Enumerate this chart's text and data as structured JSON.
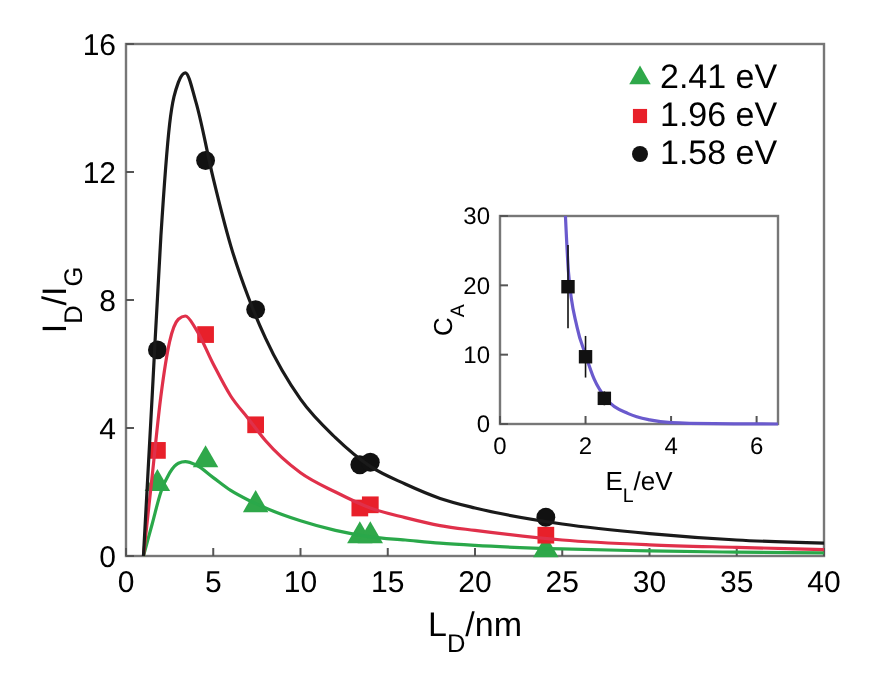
{
  "chart_data": [
    {
      "type": "scatter",
      "xlabel": "L$_{D}$/nm",
      "ylabel": "I$_{D}$/I$_{G}$",
      "xlim": [
        0,
        40
      ],
      "ylim": [
        0,
        16
      ],
      "xticks": [
        0,
        5,
        10,
        15,
        20,
        25,
        30,
        35,
        40
      ],
      "yticks": [
        0,
        4,
        8,
        12,
        16
      ],
      "legend": "top right",
      "series": [
        {
          "name": "2.41 eV",
          "color": "#2fa84a",
          "marker": "triangle",
          "x": [
            1.8,
            4.56,
            7.43,
            13.4,
            14,
            24.06
          ],
          "values": [
            2.26,
            3.0,
            1.6,
            0.63,
            0.63,
            0.19
          ]
        },
        {
          "name": "1.96 eV",
          "color": "#e8202a",
          "marker": "square",
          "x": [
            1.8,
            4.56,
            7.43,
            13.4,
            14,
            24.06
          ],
          "values": [
            3.3,
            6.92,
            4.1,
            1.5,
            1.6,
            0.65
          ]
        },
        {
          "name": "1.58 eV",
          "color": "#111111",
          "marker": "circle",
          "x": [
            1.8,
            4.56,
            7.43,
            13.4,
            14,
            24.06
          ],
          "values": [
            6.44,
            12.36,
            7.7,
            2.85,
            2.93,
            1.21
          ]
        },
        {
          "type": "line",
          "color": "#2aa84a",
          "x": [
            1,
            1.5,
            2,
            2.5,
            3,
            3.4,
            4,
            5,
            6,
            7,
            8,
            10,
            12,
            14,
            16,
            18,
            20,
            25,
            30,
            35,
            40
          ],
          "values": [
            0,
            1.0,
            2.0,
            2.6,
            2.9,
            2.95,
            2.85,
            2.45,
            2.05,
            1.75,
            1.5,
            1.1,
            0.8,
            0.6,
            0.5,
            0.4,
            0.33,
            0.22,
            0.16,
            0.12,
            0.1
          ]
        },
        {
          "type": "line",
          "color": "#e0304a",
          "x": [
            1,
            1.5,
            2,
            2.5,
            3,
            3.4,
            4,
            5,
            6,
            7,
            8,
            10,
            12,
            14,
            16,
            18,
            20,
            25,
            30,
            35,
            40
          ],
          "values": [
            0,
            2.5,
            5,
            6.7,
            7.4,
            7.5,
            7.1,
            6.0,
            5.0,
            4.3,
            3.6,
            2.6,
            2.0,
            1.5,
            1.2,
            0.95,
            0.8,
            0.5,
            0.35,
            0.27,
            0.2
          ]
        },
        {
          "type": "line",
          "color": "#1a1a1a",
          "x": [
            1,
            1.5,
            2,
            2.5,
            3,
            3.4,
            4,
            5,
            6,
            7,
            8,
            10,
            12,
            14,
            16,
            18,
            20,
            25,
            30,
            35,
            40
          ],
          "values": [
            0,
            5,
            10,
            13.5,
            14.8,
            15.1,
            14.2,
            11.8,
            9.7,
            8.1,
            6.8,
            4.9,
            3.7,
            2.8,
            2.25,
            1.8,
            1.5,
            1.0,
            0.7,
            0.5,
            0.4
          ]
        }
      ]
    },
    {
      "type": "scatter",
      "xlabel": "E$_{L}$/eV",
      "ylabel": "C$_{A}$",
      "xlim": [
        0,
        6.5
      ],
      "ylim": [
        0,
        30
      ],
      "xticks": [
        0,
        2,
        4,
        6
      ],
      "yticks": [
        0,
        10,
        20,
        30
      ],
      "series": [
        {
          "color": "#6a5acd",
          "type": "line",
          "x": [
            1.53,
            1.6,
            1.8,
            2,
            2.2,
            2.5,
            3,
            3.5,
            4,
            5,
            6.5
          ],
          "values": [
            30,
            22,
            14,
            10,
            6.5,
            3.5,
            1.5,
            0.6,
            0.2,
            0.05,
            0
          ]
        },
        {
          "color": "#111111",
          "marker": "square",
          "x": [
            1.59,
            2.0,
            2.44
          ],
          "values": [
            19.8,
            9.7,
            3.7
          ],
          "errors": [
            6,
            3,
            1
          ]
        }
      ]
    }
  ]
}
